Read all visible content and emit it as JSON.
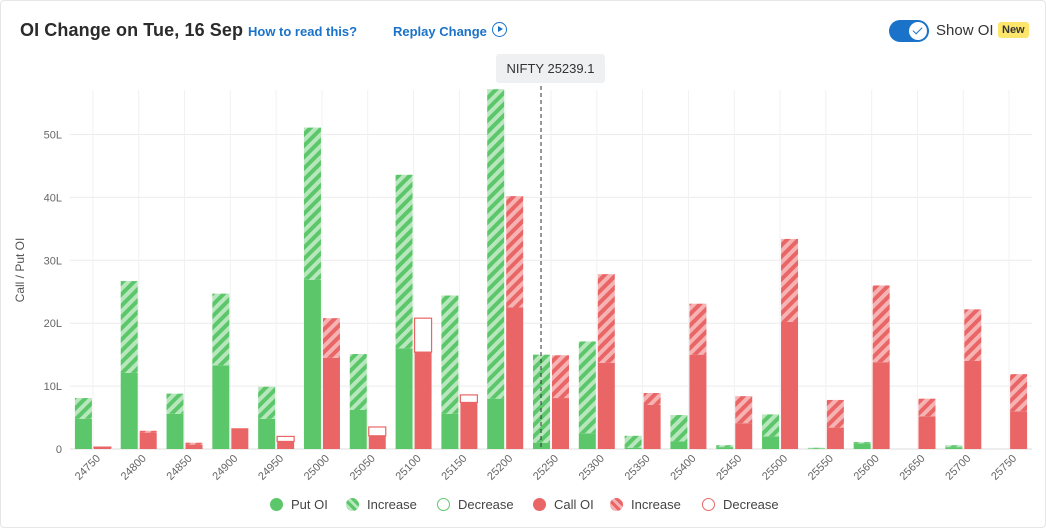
{
  "header": {
    "title": "OI Change on Tue, 16 Sep",
    "how_to_read": "How to read this?",
    "replay": "Replay Change",
    "show_oi": "Show OI",
    "badge": "New"
  },
  "tooltip": {
    "label": "NIFTY 25239.1"
  },
  "colors": {
    "put": "#5cc76a",
    "put_stripe": "#b8e6bd",
    "call": "#e96566",
    "call_stripe": "#f5b3b3",
    "accent": "#1a73c9"
  },
  "chart_data": {
    "type": "bar",
    "ylabel": "Call / Put OI",
    "ylim": [
      0,
      57
    ],
    "yticks": [
      {
        "v": 0,
        "label": "0"
      },
      {
        "v": 10,
        "label": "10L"
      },
      {
        "v": 20,
        "label": "20L"
      },
      {
        "v": 30,
        "label": "30L"
      },
      {
        "v": 40,
        "label": "40L"
      },
      {
        "v": 50,
        "label": "50L"
      }
    ],
    "spot": 25239.1,
    "categories": [
      "24750",
      "24800",
      "24850",
      "24900",
      "24950",
      "25000",
      "25050",
      "25100",
      "25150",
      "25200",
      "25250",
      "25300",
      "25350",
      "25400",
      "25450",
      "25500",
      "25550",
      "25600",
      "25650",
      "25700",
      "25750"
    ],
    "put_oi": [
      4.8,
      12.1,
      5.6,
      13.3,
      4.8,
      26.9,
      6.2,
      16.0,
      5.6,
      8.0,
      1.0,
      2.5,
      0.2,
      1.2,
      0.3,
      2.0,
      0.1,
      0.9,
      0.0,
      0.3,
      0.0
    ],
    "put_change": [
      3.3,
      14.6,
      3.2,
      11.4,
      5.1,
      24.2,
      8.9,
      27.6,
      18.8,
      49.2,
      14.0,
      14.6,
      1.9,
      4.2,
      0.3,
      3.5,
      0.1,
      0.2,
      0.0,
      0.3,
      0.0
    ],
    "call_oi": [
      0.2,
      2.6,
      0.7,
      3.3,
      1.2,
      14.5,
      2.1,
      15.4,
      7.4,
      22.5,
      8.1,
      13.7,
      7.0,
      15.0,
      4.1,
      20.2,
      3.4,
      13.8,
      5.2,
      14.0,
      6.0
    ],
    "call_change": [
      -0.1,
      0.3,
      0.3,
      0.0,
      -0.8,
      6.3,
      -1.4,
      -5.4,
      -1.2,
      17.7,
      6.8,
      14.1,
      1.9,
      8.1,
      4.3,
      13.2,
      4.4,
      12.2,
      2.8,
      8.2,
      5.9
    ],
    "legend": {
      "put_oi": "Put OI",
      "put_increase": "Increase",
      "put_decrease": "Decrease",
      "call_oi": "Call OI",
      "call_increase": "Increase",
      "call_decrease": "Decrease"
    }
  }
}
